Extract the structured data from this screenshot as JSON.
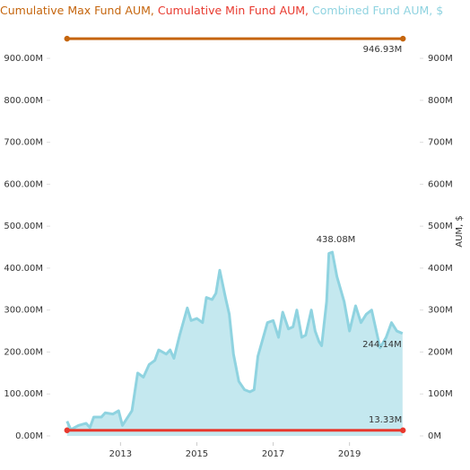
{
  "chart_data": {
    "type": "line",
    "xlim": [
      2011.3,
      2020.7
    ],
    "xticks": [
      2013,
      2015,
      2017,
      2019
    ],
    "ylim": [
      -15,
      975
    ],
    "yticks": [
      {
        "value": 0,
        "label": "0.00M"
      },
      {
        "value": 100,
        "label": "100.00M"
      },
      {
        "value": 200,
        "label": "200.00M"
      },
      {
        "value": 300,
        "label": "300.00M"
      },
      {
        "value": 400,
        "label": "400.00M"
      },
      {
        "value": 500,
        "label": "500.00M"
      },
      {
        "value": 600,
        "label": "600.00M"
      },
      {
        "value": 700,
        "label": "700.00M"
      },
      {
        "value": 800,
        "label": "800.00M"
      },
      {
        "value": 900,
        "label": "900.00M"
      }
    ],
    "y2lim": [
      -15,
      975
    ],
    "y2ticks": [
      {
        "value": 0,
        "label": "0M"
      },
      {
        "value": 100,
        "label": "100M"
      },
      {
        "value": 200,
        "label": "200M"
      },
      {
        "value": 300,
        "label": "300M"
      },
      {
        "value": 400,
        "label": "400M"
      },
      {
        "value": 500,
        "label": "500M"
      },
      {
        "value": 600,
        "label": "600M"
      },
      {
        "value": 700,
        "label": "700M"
      },
      {
        "value": 800,
        "label": "800M"
      },
      {
        "value": 900,
        "label": "900M"
      }
    ],
    "y2label": "AUM, $",
    "series": [
      {
        "name": "Cumulative Max Fund AUM,",
        "color": "#c5650d",
        "style": "line",
        "x": [
          2011.6,
          2020.4
        ],
        "values": [
          946.93,
          946.93
        ],
        "value_labels": [
          null,
          "946.93M"
        ]
      },
      {
        "name": "Cumulative Min Fund AUM,",
        "color": "#e8392e",
        "style": "line",
        "x": [
          2011.6,
          2020.4
        ],
        "values": [
          13.33,
          13.33
        ],
        "value_labels": [
          null,
          "13.33M"
        ]
      },
      {
        "name": "Combined Fund AUM, $",
        "color": "#8fd3e0",
        "style": "area",
        "x": [
          2011.6,
          2011.7,
          2011.9,
          2012.1,
          2012.2,
          2012.3,
          2012.5,
          2012.6,
          2012.8,
          2012.95,
          2013.05,
          2013.3,
          2013.45,
          2013.6,
          2013.75,
          2013.9,
          2014.0,
          2014.2,
          2014.3,
          2014.4,
          2014.55,
          2014.75,
          2014.85,
          2015.0,
          2015.15,
          2015.25,
          2015.4,
          2015.5,
          2015.6,
          2015.75,
          2015.85,
          2015.96,
          2016.1,
          2016.25,
          2016.39,
          2016.5,
          2016.6,
          2016.85,
          2017.0,
          2017.14,
          2017.25,
          2017.4,
          2017.52,
          2017.62,
          2017.75,
          2017.85,
          2018.0,
          2018.1,
          2018.2,
          2018.27,
          2018.4,
          2018.46,
          2018.55,
          2018.67,
          2018.86,
          2019.0,
          2019.16,
          2019.3,
          2019.44,
          2019.58,
          2019.8,
          2019.96,
          2020.1,
          2020.24,
          2020.39
        ],
        "values": [
          35,
          15,
          25,
          30,
          20,
          45,
          45,
          55,
          52,
          60,
          25,
          60,
          150,
          140,
          170,
          180,
          205,
          195,
          205,
          185,
          240,
          305,
          275,
          280,
          270,
          330,
          325,
          340,
          395,
          330,
          290,
          195,
          130,
          110,
          105,
          110,
          190,
          270,
          275,
          235,
          295,
          255,
          260,
          300,
          235,
          240,
          300,
          250,
          225,
          215,
          320,
          435,
          438.08,
          380,
          320,
          250,
          310,
          270,
          290,
          300,
          210,
          235,
          270,
          250,
          244.14
        ],
        "value_labels": [
          null,
          null,
          null,
          null,
          null,
          null,
          null,
          null,
          null,
          null,
          null,
          null,
          null,
          null,
          null,
          null,
          null,
          null,
          null,
          null,
          null,
          null,
          null,
          null,
          null,
          null,
          null,
          null,
          null,
          null,
          null,
          null,
          null,
          null,
          null,
          null,
          null,
          null,
          null,
          null,
          null,
          null,
          null,
          null,
          null,
          null,
          null,
          null,
          null,
          null,
          null,
          null,
          "438.08M",
          null,
          null,
          null,
          null,
          null,
          null,
          null,
          null,
          null,
          null,
          null,
          "244.14M"
        ]
      }
    ]
  }
}
